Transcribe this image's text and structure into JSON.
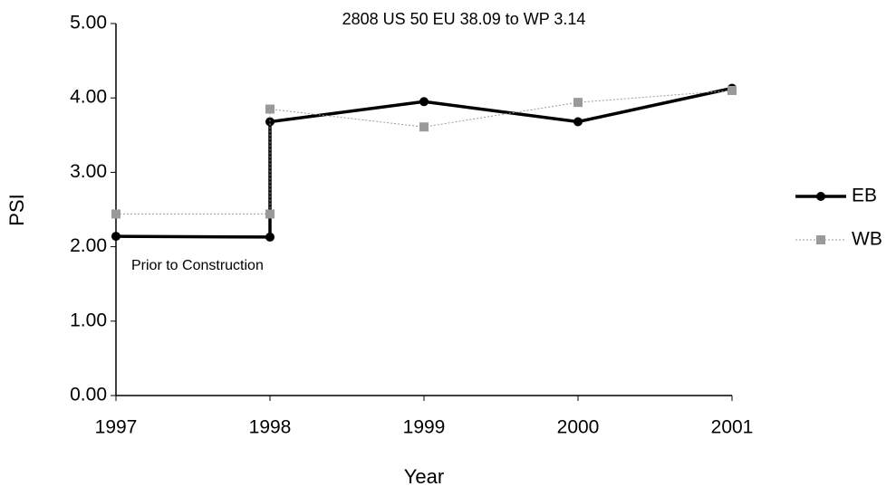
{
  "chart_data": {
    "type": "line",
    "title": "2808 US 50 EU 38.09 to WP 3.14",
    "x_label": "Year",
    "y_label": "PSI",
    "annotation": "Prior to Construction",
    "x": [
      1997,
      1998,
      1998,
      1999,
      2000,
      2001
    ],
    "series": [
      {
        "name": "EB",
        "color": "#000000",
        "values": [
          2.14,
          2.13,
          3.68,
          3.95,
          3.68,
          4.13
        ]
      },
      {
        "name": "WB",
        "color": "#9a9a9a",
        "values": [
          2.44,
          2.44,
          3.85,
          3.61,
          3.94,
          4.1
        ]
      }
    ],
    "xlim": [
      1997,
      2001
    ],
    "xticks": [
      1997,
      1998,
      1999,
      2000,
      2001
    ],
    "ylim": [
      0,
      5
    ],
    "yticks": [
      {
        "value": 0,
        "label": "0.00"
      },
      {
        "value": 1,
        "label": "1.00"
      },
      {
        "value": 2,
        "label": "2.00"
      },
      {
        "value": 3,
        "label": "3.00"
      },
      {
        "value": 4,
        "label": "4.00"
      },
      {
        "value": 5,
        "label": "5.00"
      }
    ],
    "grid": false,
    "legend": "right"
  }
}
